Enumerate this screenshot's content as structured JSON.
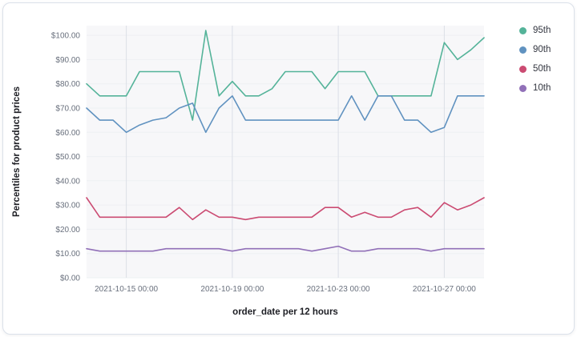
{
  "chart_data": {
    "type": "line",
    "title": "",
    "ylabel": "Percentiles for product prices",
    "xlabel": "order_date per 12 hours",
    "ylim": [
      0,
      104
    ],
    "grid": true,
    "legend_position": "right",
    "y_ticks": [
      {
        "value": 0,
        "label": "$0.00"
      },
      {
        "value": 10,
        "label": "$10.00"
      },
      {
        "value": 20,
        "label": "$20.00"
      },
      {
        "value": 30,
        "label": "$30.00"
      },
      {
        "value": 40,
        "label": "$40.00"
      },
      {
        "value": 50,
        "label": "$50.00"
      },
      {
        "value": 60,
        "label": "$60.00"
      },
      {
        "value": 70,
        "label": "$70.00"
      },
      {
        "value": 80,
        "label": "$80.00"
      },
      {
        "value": 90,
        "label": "$90.00"
      },
      {
        "value": 100,
        "label": "$100.00"
      }
    ],
    "x_ticks": [
      {
        "index": 3,
        "label": "2021-10-15 00:00"
      },
      {
        "index": 11,
        "label": "2021-10-19 00:00"
      },
      {
        "index": 19,
        "label": "2021-10-23 00:00"
      },
      {
        "index": 27,
        "label": "2021-10-27 00:00"
      }
    ],
    "series": [
      {
        "name": "95th",
        "color": "#54b399",
        "values": [
          80,
          75,
          75,
          75,
          85,
          85,
          85,
          85,
          65,
          102,
          75,
          81,
          75,
          75,
          78,
          85,
          85,
          85,
          78,
          85,
          85,
          85,
          75,
          75,
          75,
          75,
          75,
          97,
          90,
          94,
          99
        ]
      },
      {
        "name": "90th",
        "color": "#6092c0",
        "values": [
          70,
          65,
          65,
          60,
          63,
          65,
          66,
          70,
          72,
          60,
          70,
          75,
          65,
          65,
          65,
          65,
          65,
          65,
          65,
          65,
          75,
          65,
          75,
          75,
          65,
          65,
          60,
          62,
          75,
          75,
          75
        ]
      },
      {
        "name": "50th",
        "color": "#cb4b72",
        "values": [
          33,
          25,
          25,
          25,
          25,
          25,
          25,
          29,
          24,
          28,
          25,
          25,
          24,
          25,
          25,
          25,
          25,
          25,
          29,
          29,
          25,
          27,
          25,
          25,
          28,
          29,
          25,
          31,
          28,
          30,
          33
        ]
      },
      {
        "name": "10th",
        "color": "#9170b8",
        "values": [
          12,
          11,
          11,
          11,
          11,
          11,
          12,
          12,
          12,
          12,
          12,
          11,
          12,
          12,
          12,
          12,
          12,
          11,
          12,
          13,
          11,
          11,
          12,
          12,
          12,
          12,
          11,
          12,
          12,
          12,
          12
        ]
      }
    ]
  }
}
